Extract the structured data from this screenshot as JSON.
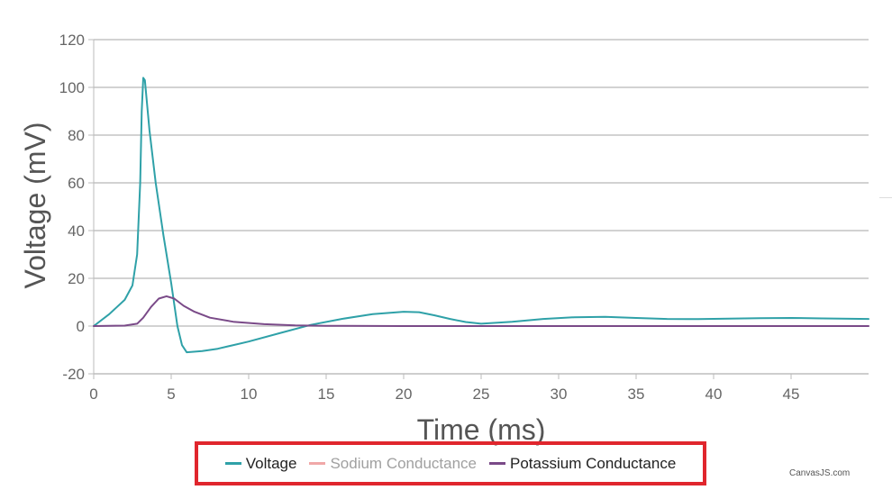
{
  "chart_data": {
    "type": "line",
    "xlabel": "Time (ms)",
    "ylabel": "Voltage (mV)",
    "xlim": [
      0,
      50
    ],
    "ylim": [
      -20,
      120
    ],
    "x_ticks": [
      0,
      5,
      10,
      15,
      20,
      25,
      30,
      35,
      40,
      45
    ],
    "y_ticks": [
      -20,
      0,
      20,
      40,
      60,
      80,
      100,
      120
    ],
    "grid": "horizontal",
    "legend_position": "bottom-center",
    "series": [
      {
        "name": "Voltage",
        "color": "#2fa1a8",
        "visible": true,
        "x": [
          0,
          1,
          2,
          2.5,
          2.8,
          3.0,
          3.1,
          3.2,
          3.3,
          3.6,
          4.0,
          4.5,
          5.0,
          5.4,
          5.7,
          6.0,
          7,
          8,
          10,
          12,
          14,
          16,
          18,
          20,
          21,
          22,
          23,
          24,
          25,
          27,
          29,
          31,
          33,
          35,
          37,
          39,
          41,
          43,
          45,
          47,
          50
        ],
        "y": [
          0,
          5,
          11,
          17,
          30,
          60,
          90,
          104,
          103,
          82,
          60,
          38,
          18,
          0,
          -8,
          -11,
          -10.5,
          -9.5,
          -6.5,
          -3,
          0.5,
          3,
          5,
          6,
          5.8,
          4.5,
          3,
          1.7,
          1,
          1.8,
          3,
          3.7,
          3.9,
          3.4,
          3,
          2.9,
          3.1,
          3.3,
          3.4,
          3.2,
          3
        ]
      },
      {
        "name": "Sodium Conductance",
        "color": "#f0a8a8",
        "visible": false,
        "x": [
          0,
          50
        ],
        "y": [
          0,
          0
        ]
      },
      {
        "name": "Potassium Conductance",
        "color": "#7a4a88",
        "visible": true,
        "x": [
          0,
          2,
          2.8,
          3.2,
          3.7,
          4.2,
          4.7,
          5.2,
          5.8,
          6.5,
          7.5,
          9,
          11,
          13,
          15,
          20,
          50
        ],
        "y": [
          0,
          0.2,
          1,
          3.5,
          8,
          11.5,
          12.5,
          11.5,
          8.5,
          6,
          3.5,
          1.8,
          0.8,
          0.3,
          0.1,
          0,
          0
        ]
      }
    ]
  },
  "credit": "CanvasJS.com"
}
